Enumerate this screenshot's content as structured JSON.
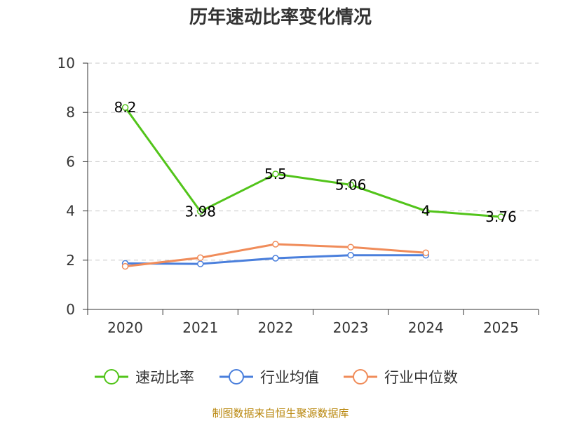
{
  "chart_data": {
    "type": "line",
    "title": "历年速动比率变化情况",
    "categories": [
      "2020",
      "2021",
      "2022",
      "2023",
      "2024",
      "2025"
    ],
    "ylim": [
      0,
      10
    ],
    "yticks": [
      "0",
      "2",
      "4",
      "6",
      "8",
      "10"
    ],
    "grid": true,
    "legend_position": "bottom",
    "series": [
      {
        "name": "速动比率",
        "color": "#52c41a",
        "values": [
          8.2,
          3.98,
          5.5,
          5.06,
          4,
          3.76
        ],
        "labels": [
          "8.2",
          "3.98",
          "5.5",
          "5.06",
          "4",
          "3.76"
        ]
      },
      {
        "name": "行业均值",
        "color": "#4a7fdc",
        "values": [
          1.87,
          1.85,
          2.08,
          2.2,
          2.2,
          null
        ]
      },
      {
        "name": "行业中位数",
        "color": "#f08c5a",
        "values": [
          1.75,
          2.1,
          2.65,
          2.53,
          2.3,
          null
        ]
      }
    ],
    "source": "制图数据来自恒生聚源数据库"
  }
}
